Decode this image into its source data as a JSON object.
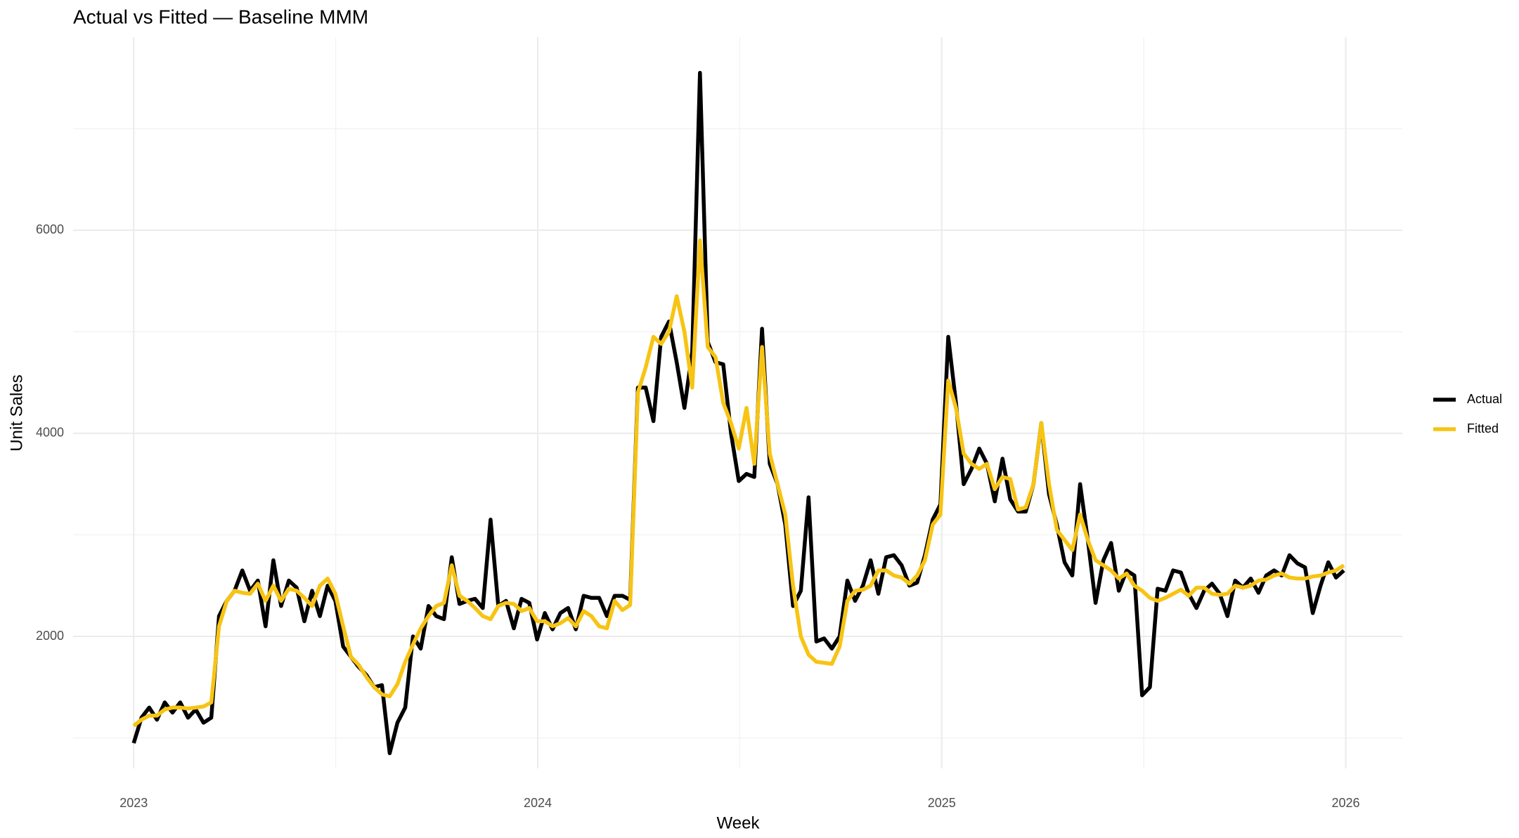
{
  "chart_data": {
    "type": "line",
    "title": "Actual vs Fitted — Baseline MMM",
    "x_label": "Week",
    "y_label": "Unit Sales",
    "x": [
      2023,
      2023.0192,
      2023.0384,
      2023.0576,
      2023.0768,
      2023.096,
      2023.1152,
      2023.1344,
      2023.1536,
      2023.1728,
      2023.192,
      2023.2112,
      2023.2304,
      2023.2496,
      2023.2688,
      2023.288,
      2023.3072,
      2023.3264,
      2023.3456,
      2023.3648,
      2023.384,
      2023.4032,
      2023.4224,
      2023.4416,
      2023.4608,
      2023.48,
      2023.4992,
      2023.5184,
      2023.5376,
      2023.5568,
      2023.576,
      2023.5952,
      2023.6144,
      2023.6336,
      2023.6528,
      2023.672,
      2023.6912,
      2023.7104,
      2023.7296,
      2023.7488,
      2023.768,
      2023.7872,
      2023.8064,
      2023.8256,
      2023.8448,
      2023.864,
      2023.8832,
      2023.9024,
      2023.9216,
      2023.9408,
      2023.96,
      2023.9792,
      2023.9984,
      2024.0176,
      2024.0368,
      2024.056,
      2024.0752,
      2024.0944,
      2024.1136,
      2024.1328,
      2024.152,
      2024.1712,
      2024.1904,
      2024.2096,
      2024.2288,
      2024.248,
      2024.2672,
      2024.2864,
      2024.3056,
      2024.3248,
      2024.344,
      2024.3632,
      2024.3824,
      2024.4016,
      2024.4208,
      2024.44,
      2024.4592,
      2024.4784,
      2024.4976,
      2024.5168,
      2024.536,
      2024.5552,
      2024.5744,
      2024.5936,
      2024.6128,
      2024.632,
      2024.6512,
      2024.6704,
      2024.6896,
      2024.7088,
      2024.728,
      2024.7472,
      2024.7664,
      2024.7856,
      2024.8048,
      2024.824,
      2024.8432,
      2024.8624,
      2024.8816,
      2024.9008,
      2024.92,
      2024.9392,
      2024.9584,
      2024.9776,
      2024.9968,
      2025.016,
      2025.0352,
      2025.0544,
      2025.0736,
      2025.0928,
      2025.112,
      2025.1312,
      2025.1504,
      2025.1696,
      2025.1888,
      2025.208,
      2025.2272,
      2025.2464,
      2025.2656,
      2025.2848,
      2025.304,
      2025.3232,
      2025.3424,
      2025.3616,
      2025.3808,
      2025.4,
      2025.4192,
      2025.4384,
      2025.4576,
      2025.4768,
      2025.496,
      2025.5152,
      2025.5344,
      2025.5536,
      2025.5728,
      2025.592,
      2025.6112,
      2025.6304,
      2025.6496,
      2025.6688,
      2025.688,
      2025.7072,
      2025.7264,
      2025.7456,
      2025.7648,
      2025.784,
      2025.8032,
      2025.8224,
      2025.8416,
      2025.8608,
      2025.88,
      2025.8992,
      2025.9184,
      2025.9376,
      2025.9568,
      2025.976,
      2025.9952
    ],
    "series": [
      {
        "name": "Actual",
        "color": "#000000",
        "values": [
          950,
          1200,
          1300,
          1180,
          1350,
          1250,
          1350,
          1200,
          1280,
          1150,
          1200,
          2200,
          2350,
          2450,
          2650,
          2450,
          2550,
          2100,
          2750,
          2300,
          2550,
          2480,
          2150,
          2450,
          2200,
          2500,
          2350,
          1900,
          1800,
          1700,
          1620,
          1500,
          1520,
          850,
          1150,
          1300,
          2000,
          1880,
          2300,
          2200,
          2170,
          2780,
          2320,
          2350,
          2370,
          2280,
          3150,
          2300,
          2350,
          2080,
          2370,
          2330,
          1970,
          2230,
          2070,
          2230,
          2280,
          2070,
          2400,
          2380,
          2380,
          2200,
          2400,
          2400,
          2360,
          4450,
          4450,
          4120,
          4950,
          5100,
          4700,
          4250,
          4800,
          7550,
          4900,
          4700,
          4680,
          4000,
          3530,
          3600,
          3570,
          5030,
          3700,
          3500,
          3100,
          2300,
          2450,
          3370,
          1950,
          1980,
          1880,
          2000,
          2550,
          2350,
          2500,
          2750,
          2420,
          2780,
          2800,
          2700,
          2500,
          2530,
          2800,
          3150,
          3300,
          4950,
          4300,
          3500,
          3650,
          3850,
          3700,
          3330,
          3750,
          3350,
          3230,
          3230,
          3500,
          4100,
          3400,
          3100,
          2730,
          2600,
          3500,
          2950,
          2330,
          2750,
          2920,
          2450,
          2650,
          2600,
          1420,
          1500,
          2470,
          2450,
          2650,
          2630,
          2420,
          2280,
          2450,
          2520,
          2420,
          2200,
          2550,
          2480,
          2570,
          2430,
          2600,
          2650,
          2600,
          2800,
          2720,
          2680,
          2230,
          2500,
          2730,
          2580,
          2650
        ]
      },
      {
        "name": "Fitted",
        "color": "#f7c414",
        "values": [
          1120,
          1180,
          1220,
          1220,
          1280,
          1300,
          1300,
          1290,
          1300,
          1310,
          1350,
          2100,
          2350,
          2450,
          2430,
          2420,
          2520,
          2350,
          2500,
          2350,
          2470,
          2450,
          2380,
          2300,
          2500,
          2570,
          2420,
          2100,
          1800,
          1720,
          1600,
          1500,
          1430,
          1410,
          1530,
          1750,
          1920,
          2080,
          2200,
          2300,
          2330,
          2700,
          2400,
          2350,
          2280,
          2200,
          2170,
          2300,
          2330,
          2320,
          2250,
          2280,
          2150,
          2150,
          2100,
          2130,
          2180,
          2100,
          2250,
          2200,
          2100,
          2080,
          2350,
          2260,
          2310,
          4400,
          4650,
          4950,
          4880,
          5000,
          5350,
          5000,
          4450,
          5900,
          4850,
          4750,
          4300,
          4100,
          3850,
          4250,
          3700,
          4850,
          3800,
          3500,
          3200,
          2500,
          2000,
          1820,
          1750,
          1740,
          1730,
          1900,
          2350,
          2450,
          2460,
          2500,
          2650,
          2650,
          2600,
          2580,
          2520,
          2600,
          2750,
          3100,
          3200,
          4520,
          4250,
          3800,
          3700,
          3650,
          3700,
          3450,
          3570,
          3550,
          3250,
          3270,
          3500,
          4100,
          3500,
          3050,
          2950,
          2850,
          3200,
          2950,
          2750,
          2700,
          2650,
          2570,
          2620,
          2500,
          2450,
          2380,
          2350,
          2380,
          2420,
          2460,
          2400,
          2480,
          2480,
          2420,
          2410,
          2420,
          2500,
          2480,
          2500,
          2550,
          2560,
          2600,
          2620,
          2580,
          2570,
          2570,
          2590,
          2600,
          2630,
          2650,
          2700
        ]
      }
    ],
    "xlim": [
      2022.85,
      2026.14
    ],
    "ylim": [
      700,
      7900
    ],
    "xticks": [
      2023,
      2024,
      2025,
      2026
    ],
    "yticks": [
      2000,
      4000,
      6000
    ],
    "grid": true,
    "legend": "right"
  }
}
